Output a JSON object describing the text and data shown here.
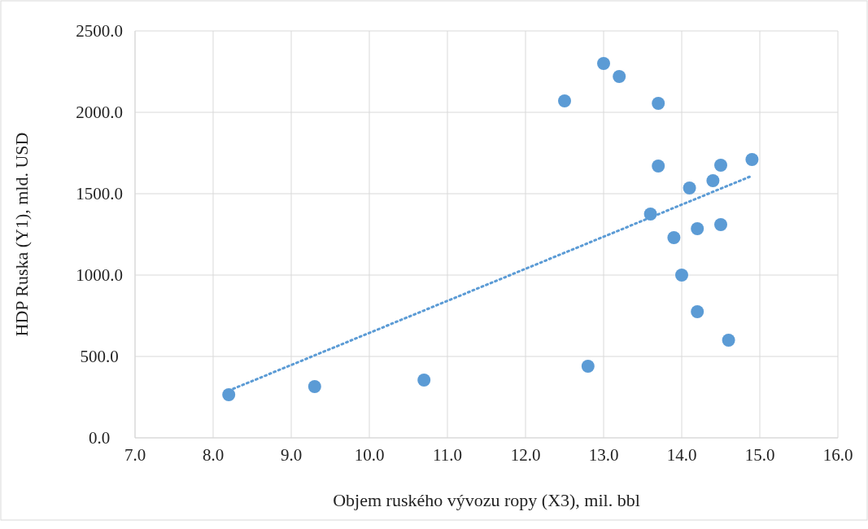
{
  "chart_data": {
    "type": "scatter",
    "xlabel": "Objem ruského vývozu ropy (X3), mil. bbl",
    "ylabel": "HDP Ruska (Y1), mld. USD",
    "xlim": [
      7,
      16
    ],
    "xticks": [
      {
        "value": 7,
        "label": "7.0"
      },
      {
        "value": 8,
        "label": "8.0"
      },
      {
        "value": 9,
        "label": "9.0"
      },
      {
        "value": 10,
        "label": "10.0"
      },
      {
        "value": 11,
        "label": "11.0"
      },
      {
        "value": 12,
        "label": "12.0"
      },
      {
        "value": 13,
        "label": "13.0"
      },
      {
        "value": 14,
        "label": "14.0"
      },
      {
        "value": 15,
        "label": "15.0"
      },
      {
        "value": 16,
        "label": "16.0"
      }
    ],
    "ylim": [
      0,
      2500
    ],
    "yticks": [
      {
        "value": 0,
        "label": "0.0"
      },
      {
        "value": 500,
        "label": "500.0"
      },
      {
        "value": 1000,
        "label": "1000.0"
      },
      {
        "value": 1500,
        "label": "1500.0"
      },
      {
        "value": 2000,
        "label": "2000.0"
      },
      {
        "value": 2500,
        "label": "2500.0"
      }
    ],
    "grid": true,
    "marker": "circle",
    "series": [
      {
        "color": "#5b9bd5",
        "x": [
          8.2,
          9.3,
          10.7,
          12.8,
          12.5,
          13.0,
          13.2,
          13.7,
          13.7,
          13.6,
          13.9,
          14.0,
          14.1,
          14.2,
          14.2,
          14.4,
          14.5,
          14.5,
          14.6,
          14.9
        ],
        "values": [
          265,
          315,
          355,
          440,
          2070,
          2300,
          2220,
          2055,
          1670,
          1375,
          1230,
          1000,
          1535,
          775,
          1285,
          1580,
          1675,
          1310,
          600,
          1710
        ]
      },
      {
        "type": "line",
        "color": "#5b9bd5",
        "line_style": "dotted",
        "marker": "none",
        "x": [
          8.2,
          14.9
        ],
        "values": [
          290,
          1610
        ]
      }
    ]
  }
}
